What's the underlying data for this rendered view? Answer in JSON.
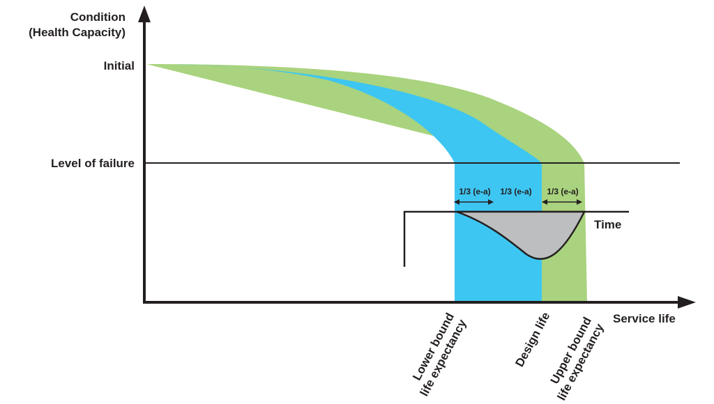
{
  "y_axis": {
    "title_line1": "Condition",
    "title_line2": "(Health Capacity)",
    "tick_initial": "Initial",
    "tick_failure": "Level of failure"
  },
  "x_axis": {
    "title": "Service life",
    "ticks": [
      {
        "line1": "Lower bound",
        "line2": "life expectancy"
      },
      {
        "line1": "Design life",
        "line2": ""
      },
      {
        "line1": "Upper bound",
        "line2": "life expectancy"
      }
    ]
  },
  "inset": {
    "time_label": "Time",
    "interval_labels": [
      "1/3 (e-a)",
      "1/3 (e-a)",
      "1/3 (e-a)"
    ]
  },
  "colors": {
    "lower_band": "#3ec6f2",
    "upper_band": "#a9d37e",
    "distribution": "#bcbec0",
    "line": "#231f20"
  }
}
